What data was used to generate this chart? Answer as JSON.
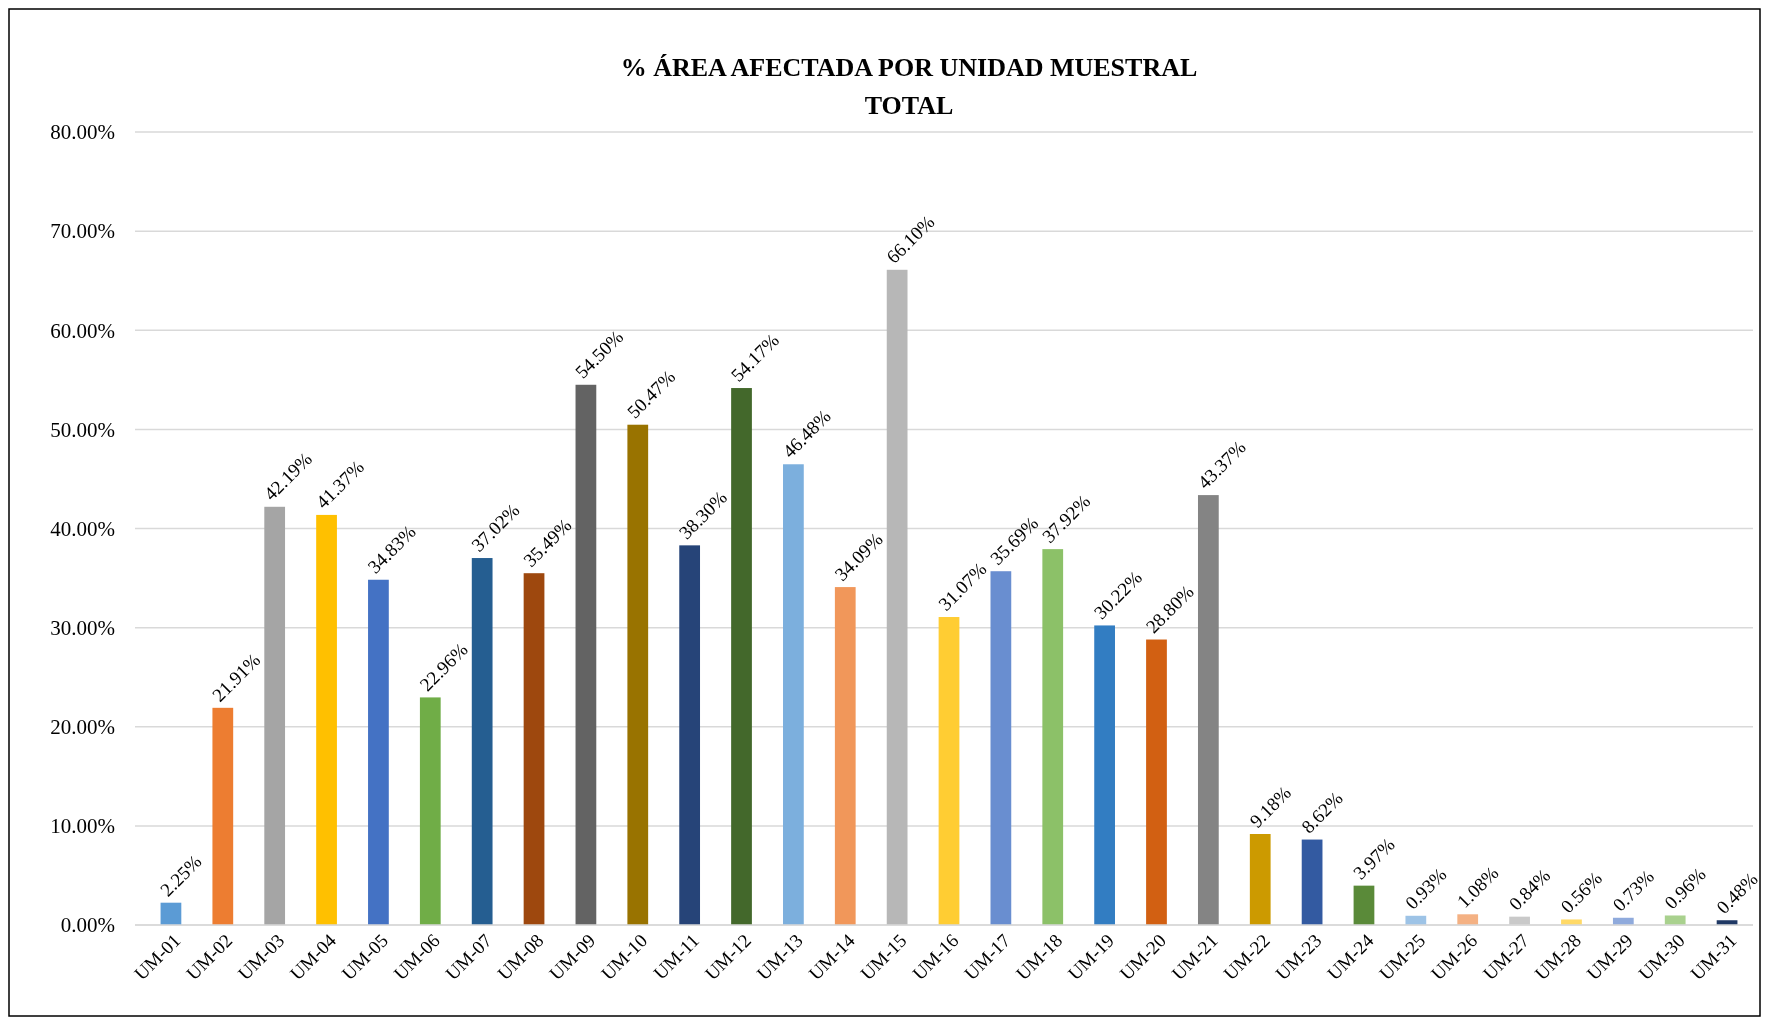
{
  "chart_data": {
    "type": "bar",
    "title": "% ÁREA AFECTADA POR UNIDAD MUESTRAL\nTOTAL",
    "categories": [
      "UM-01",
      "UM-02",
      "UM-03",
      "UM-04",
      "UM-05",
      "UM-06",
      "UM-07",
      "UM-08",
      "UM-09",
      "UM-10",
      "UM-11",
      "UM-12",
      "UM-13",
      "UM-14",
      "UM-15",
      "UM-16",
      "UM-17",
      "UM-18",
      "UM-19",
      "UM-20",
      "UM-21",
      "UM-22",
      "UM-23",
      "UM-24",
      "UM-25",
      "UM-26",
      "UM-27",
      "UM-28",
      "UM-29",
      "UM-30",
      "UM-31"
    ],
    "values": [
      2.25,
      21.91,
      42.19,
      41.37,
      34.83,
      22.96,
      37.02,
      35.49,
      54.5,
      50.47,
      38.3,
      54.17,
      46.48,
      34.09,
      66.1,
      31.07,
      35.69,
      37.92,
      30.22,
      28.8,
      43.37,
      9.18,
      8.62,
      3.97,
      0.93,
      1.08,
      0.84,
      0.56,
      0.73,
      0.96,
      0.48
    ],
    "value_labels": [
      "2.25%",
      "21.91%",
      "42.19%",
      "41.37%",
      "34.83%",
      "22.96%",
      "37.02%",
      "35.49%",
      "54.50%",
      "50.47%",
      "38.30%",
      "54.17%",
      "46.48%",
      "34.09%",
      "66.10%",
      "31.07%",
      "35.69%",
      "37.92%",
      "30.22%",
      "28.80%",
      "43.37%",
      "9.18%",
      "8.62%",
      "3.97%",
      "0.93%",
      "1.08%",
      "0.84%",
      "0.56%",
      "0.73%",
      "0.96%",
      "0.48%"
    ],
    "colors": [
      "#5b9bd5",
      "#ed7d31",
      "#a5a5a5",
      "#ffc000",
      "#4472c4",
      "#70ad47",
      "#255e91",
      "#9e480e",
      "#636363",
      "#997300",
      "#264478",
      "#43682b",
      "#7cafdd",
      "#f1975a",
      "#b7b7b7",
      "#ffcd33",
      "#698ed0",
      "#8cc168",
      "#327dc2",
      "#d26012",
      "#848484",
      "#cc9a00",
      "#335aa1",
      "#5a8a39",
      "#9dc3e6",
      "#f4b183",
      "#c9c9c9",
      "#ffd966",
      "#8faadc",
      "#a9d18e",
      "#1f3864"
    ],
    "ylim": [
      0,
      80
    ],
    "yticks": [
      {
        "value": 0,
        "label": "0.00%"
      },
      {
        "value": 10,
        "label": "10.00%"
      },
      {
        "value": 20,
        "label": "20.00%"
      },
      {
        "value": 30,
        "label": "30.00%"
      },
      {
        "value": 40,
        "label": "40.00%"
      },
      {
        "value": 50,
        "label": "50.00%"
      },
      {
        "value": 60,
        "label": "60.00%"
      },
      {
        "value": 70,
        "label": "70.00%"
      },
      {
        "value": 80,
        "label": "80.00%"
      }
    ],
    "grid": "y"
  }
}
